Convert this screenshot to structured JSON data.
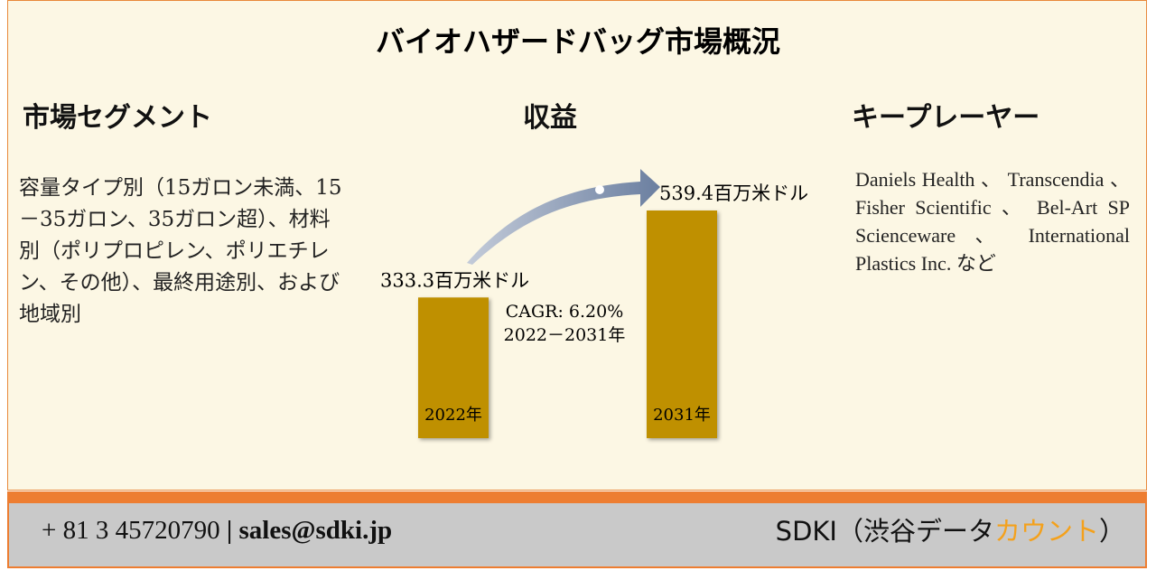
{
  "title": "バイオハザードバッグ市場概況",
  "segment": {
    "heading": "市場セグメント",
    "text": "容量タイプ別（15ガロン未満、15－35ガロン、35ガロン超）、材料別（ポリプロピレン、ポリエチレン、その他）、最終用途別、および地域別"
  },
  "revenue": {
    "heading": "収益",
    "bars": [
      {
        "year": "2022年",
        "value": 333.3,
        "value_label": "333.3百万米ドル"
      },
      {
        "year": "2031年",
        "value": 539.4,
        "value_label": "539.4百万米ドル"
      }
    ],
    "cagr": "CAGR: 6.20%",
    "period": "2022－2031年"
  },
  "players": {
    "heading": "キープレーヤー",
    "text": "Daniels Health 、 Transcendia 、 Fisher Scientific 、 Bel-Art SP Scienceware 、 International Plastics Inc. など"
  },
  "footer": {
    "phone": "+ 81 3 45720790",
    "separator": "|",
    "email": "sales@sdki.jp",
    "brand": "SDKI（渋谷データ",
    "brand_highlight": "カウント",
    "brand_end": "）"
  }
}
